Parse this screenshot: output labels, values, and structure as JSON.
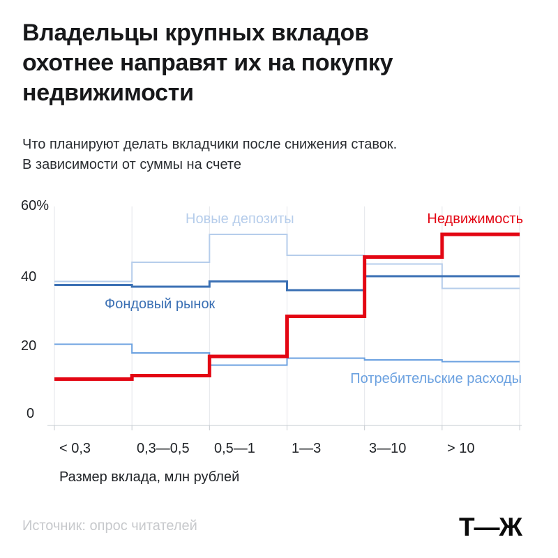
{
  "header": {
    "title": "Владельцы крупных вкладов\nохотнее направят их на покупку\nнедвижимости",
    "subtitle": "Что планируют делать вкладчики после снижения ставок.\nВ зависимости от суммы на счете"
  },
  "chart_data": {
    "type": "line",
    "subtype": "step",
    "title": "Что планируют делать вкладчики после снижения ставок, в зависимости от суммы на счете",
    "categories": [
      "< 0,3",
      "0,3—0,5",
      "0,5—1",
      "1—3",
      "3—10",
      "> 10"
    ],
    "series": [
      {
        "name": "Новые депозиты",
        "values": [
          38.5,
          44,
          52,
          46,
          43.5,
          36.5
        ],
        "color": "#b6cdeb",
        "width": 2
      },
      {
        "name": "Потребительские расходы",
        "values": [
          20.5,
          18,
          14.5,
          16.5,
          16,
          15.5
        ],
        "color": "#6ba1e0",
        "width": 2
      },
      {
        "name": "Фондовый рынок",
        "values": [
          37.5,
          37,
          38.5,
          36,
          40,
          40
        ],
        "color": "#3b70b4",
        "width": 3
      },
      {
        "name": "Недвижимость",
        "values": [
          10.5,
          11.5,
          17,
          28.5,
          45.5,
          52
        ],
        "color": "#e30613",
        "width": 5
      }
    ],
    "y_ticks": [
      "60%",
      "40",
      "20",
      "0"
    ],
    "y_tick_values": [
      60,
      40,
      20,
      0
    ],
    "ylim": [
      0,
      62
    ],
    "xlabel": "Размер вклада, млн рублей",
    "ylabel": "",
    "grid": "vertical-only",
    "legend_position": "inline-labels"
  },
  "footer": {
    "source": "Источник: опрос читателей",
    "logo": "Т—Ж"
  }
}
